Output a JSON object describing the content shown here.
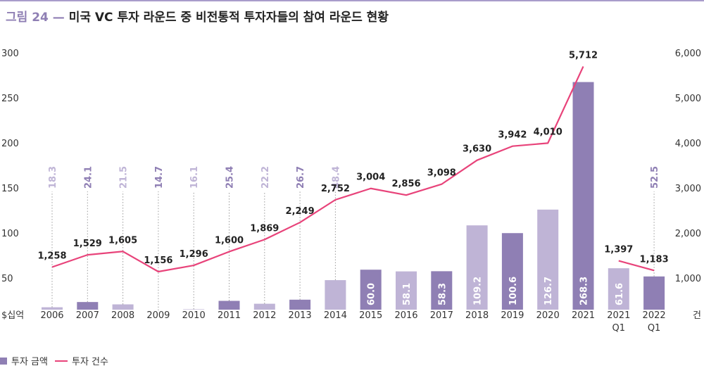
{
  "title": {
    "figure_label": "그림 24",
    "dash": "—",
    "text": "미국 VC 투자 라운드 중 비전통적 투자자들의 참여 라운드 현황"
  },
  "legend": {
    "bar_label": "투자 금액",
    "line_label": "투자 건수"
  },
  "colors": {
    "bar_dark": "#8f7fb4",
    "bar_light": "#bfb4d6",
    "line": "#e8437a",
    "title_accent": "#8f7fb4"
  },
  "chart_data": {
    "type": "bar+line",
    "categories": [
      "2006",
      "2007",
      "2008",
      "2009",
      "2010",
      "2011",
      "2012",
      "2013",
      "2014",
      "2015",
      "2016",
      "2017",
      "2018",
      "2019",
      "2020",
      "2021",
      "2021\nQ1",
      "2022\nQ1"
    ],
    "left_axis": {
      "unit_label": "$십억",
      "ylim": [
        0,
        300
      ],
      "ticks": [
        50,
        100,
        150,
        200,
        250,
        300
      ]
    },
    "right_axis": {
      "unit_label": "건",
      "ylim": [
        0,
        6000
      ],
      "ticks": [
        "1,000",
        "2,000",
        "3,000",
        "4,000",
        "5,000",
        "6,000"
      ]
    },
    "series": [
      {
        "name": "투자 금액",
        "kind": "bar",
        "axis": "left",
        "values": [
          18.3,
          24.1,
          21.5,
          14.7,
          16.1,
          25.4,
          22.2,
          26.7,
          48.4,
          60.0,
          58.1,
          58.3,
          109.2,
          100.6,
          126.7,
          268.3,
          61.6,
          52.5
        ],
        "labels": [
          "18.3",
          "24.1",
          "21.5",
          "14.7",
          "16.1",
          "25.4",
          "22.2",
          "26.7",
          "48.4",
          "60.0",
          "58.1",
          "58.3",
          "109.2",
          "100.6",
          "126.7",
          "268.3",
          "61.6",
          "52.5"
        ],
        "shade": [
          "light",
          "dark",
          "light",
          "dark",
          "light",
          "dark",
          "light",
          "dark",
          "light",
          "dark",
          "light",
          "dark",
          "light",
          "dark",
          "light",
          "dark",
          "light",
          "dark"
        ]
      },
      {
        "name": "투자 건수",
        "kind": "line",
        "axis": "right",
        "values": [
          1258,
          1529,
          1605,
          1156,
          1296,
          1600,
          1869,
          2249,
          2752,
          3004,
          2856,
          3098,
          3630,
          3942,
          4010,
          5712,
          1397,
          1183
        ],
        "labels": [
          "1,258",
          "1,529",
          "1,605",
          "1,156",
          "1,296",
          "1,600",
          "1,869",
          "2,249",
          "2,752",
          "3,004",
          "2,856",
          "3,098",
          "3,630",
          "3,942",
          "4,010",
          "5,712",
          "1,397",
          "1,183"
        ],
        "segments": [
          [
            0,
            15
          ],
          [
            16,
            17
          ]
        ]
      }
    ],
    "grid": false
  }
}
